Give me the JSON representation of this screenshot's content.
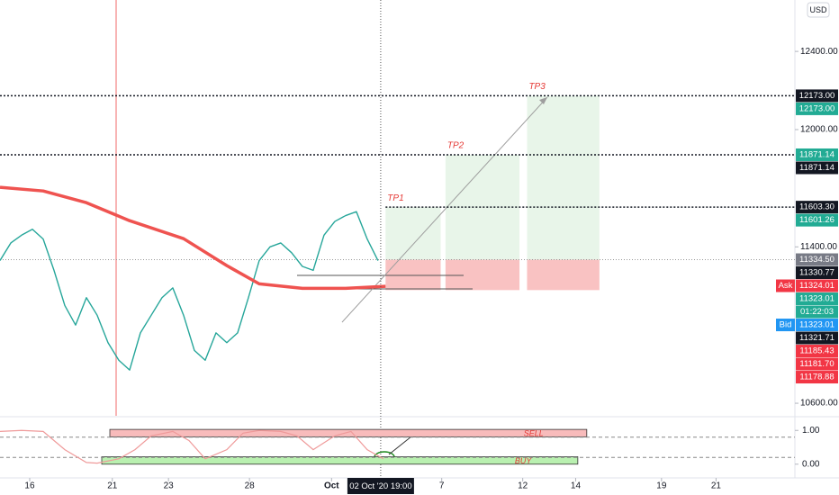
{
  "chart_data": {
    "type": "line",
    "currency": "USD",
    "xlim": [
      0,
      73.6
    ],
    "ylim": [
      10545,
      12663
    ],
    "yticks": [
      {
        "value": 12400,
        "label": "12400.00"
      },
      {
        "value": 12000,
        "label": "12000.00"
      },
      {
        "value": 11400,
        "label": "11400.00"
      },
      {
        "value": 10600,
        "label": "10600.00"
      }
    ],
    "xticks": [
      {
        "value": 2.75,
        "label": "16"
      },
      {
        "value": 10.4,
        "label": "21"
      },
      {
        "value": 15.6,
        "label": "23"
      },
      {
        "value": 23.1,
        "label": "28"
      },
      {
        "value": 30.7,
        "label": "Oct"
      },
      {
        "value": 40.9,
        "label": "7"
      },
      {
        "value": 48.4,
        "label": "12"
      },
      {
        "value": 53.3,
        "label": "14"
      },
      {
        "value": 61.25,
        "label": "19"
      },
      {
        "value": 66.3,
        "label": "21"
      }
    ],
    "crosshair": {
      "x": 35.25,
      "label": "02 Oct '20 19:00"
    },
    "series": [
      {
        "color": "#26a69a",
        "width": 1.4,
        "x": [
          0,
          1,
          2,
          3,
          4,
          5,
          6,
          7,
          8,
          9,
          10,
          11,
          12,
          13,
          14,
          15,
          16,
          17,
          18,
          19,
          20,
          21,
          22,
          23,
          24,
          25,
          26,
          27,
          28,
          29,
          30,
          31,
          32,
          33,
          34,
          35
        ],
        "values": [
          11330,
          11420,
          11460,
          11490,
          11440,
          11280,
          11100,
          11000,
          11140,
          11050,
          10910,
          10820,
          10770,
          10960,
          11050,
          11140,
          11190,
          11050,
          10870,
          10820,
          10960,
          10910,
          10960,
          11140,
          11330,
          11400,
          11420,
          11370,
          11300,
          11280,
          11460,
          11530,
          11560,
          11580,
          11440,
          11330
        ]
      },
      {
        "color": "#ef5350",
        "width": 3.5,
        "x": [
          0,
          4,
          8,
          12,
          17,
          21,
          24,
          28,
          32,
          35.7
        ],
        "values": [
          11705,
          11686,
          11626,
          11534,
          11442,
          11304,
          11211,
          11188,
          11188,
          11198
        ]
      }
    ],
    "price_labels": [
      {
        "value": 12173.0,
        "label": "12173.00",
        "color": "#131722"
      },
      {
        "value": 12173.0,
        "label": "12173.00",
        "color": "#22ab94"
      },
      {
        "value": 11871.14,
        "label": "11871.14",
        "color": "#22ab94"
      },
      {
        "value": 11871.14,
        "label": "11871.14",
        "color": "#131722"
      },
      {
        "value": 11603.3,
        "label": "11603.30",
        "color": "#131722"
      },
      {
        "value": 11601.26,
        "label": "11601.26",
        "color": "#22ab94"
      },
      {
        "value": 11334.5,
        "label": "11334.50",
        "color": "#787b86"
      },
      {
        "value": 11330.77,
        "label": "11330.77",
        "color": "#131722"
      },
      {
        "value": 11324.01,
        "label": "11324.01",
        "color": "#f23645",
        "prefix": "Ask"
      },
      {
        "value": 11323.01,
        "label": "11323.01",
        "color": "#22ab94"
      },
      {
        "label": "01:22:03",
        "color": "#22ab94"
      },
      {
        "value": 11323.01,
        "label": "11323.01",
        "color": "#2196f3",
        "prefix": "Bid"
      },
      {
        "value": 11321.71,
        "label": "11321.71",
        "color": "#131722"
      },
      {
        "value": 11185.43,
        "label": "11185.43",
        "color": "#f23645"
      },
      {
        "value": 11181.7,
        "label": "11181.70",
        "color": "#f23645"
      },
      {
        "value": 11178.88,
        "label": "11178.88",
        "color": "#f23645"
      }
    ],
    "horizontal_lines": [
      {
        "value": 12173.0,
        "from": 0
      },
      {
        "value": 11871.14,
        "from": 0
      },
      {
        "value": 11603.3,
        "from": 35.7
      }
    ],
    "entry": 11334.5,
    "stop": 11178.88,
    "positions": [
      {
        "label": "TP1",
        "target": 11603.3,
        "x": [
          35.7,
          40.8
        ]
      },
      {
        "label": "TP2",
        "target": 11871.14,
        "x": [
          41.25,
          48.1
        ]
      },
      {
        "label": "TP3",
        "target": 12173.0,
        "x": [
          48.8,
          55.5
        ]
      }
    ],
    "oscillator": {
      "ylim": [
        -0.38,
        1.38
      ],
      "yticks": [
        {
          "value": 1,
          "label": "1.00"
        },
        {
          "value": 0,
          "label": "0.00"
        }
      ],
      "levels": [
        0.8,
        0.2
      ],
      "color": "#ef9a9a",
      "x": [
        0,
        2,
        4,
        6,
        8,
        9,
        11,
        12.5,
        14,
        16,
        17.5,
        19,
        21,
        22.5,
        24,
        26,
        27.5,
        29,
        31,
        32.5,
        34,
        35.5
      ],
      "values": [
        0.97,
        1.0,
        0.97,
        0.43,
        0.05,
        0.03,
        0.16,
        0.43,
        0.84,
        0.97,
        0.7,
        0.16,
        0.43,
        0.92,
        1.0,
        0.97,
        0.84,
        0.43,
        0.84,
        0.97,
        0.43,
        0.16
      ],
      "zones": [
        {
          "label": "SELL",
          "color": "#f8bbbb",
          "x": [
            10.17,
            54.33
          ],
          "range": [
            0.81,
            1.03
          ]
        },
        {
          "label": "BUY",
          "color": "#b9f0b0",
          "x": [
            9.42,
            53.5
          ],
          "range": [
            0.0,
            0.22
          ]
        }
      ]
    }
  }
}
